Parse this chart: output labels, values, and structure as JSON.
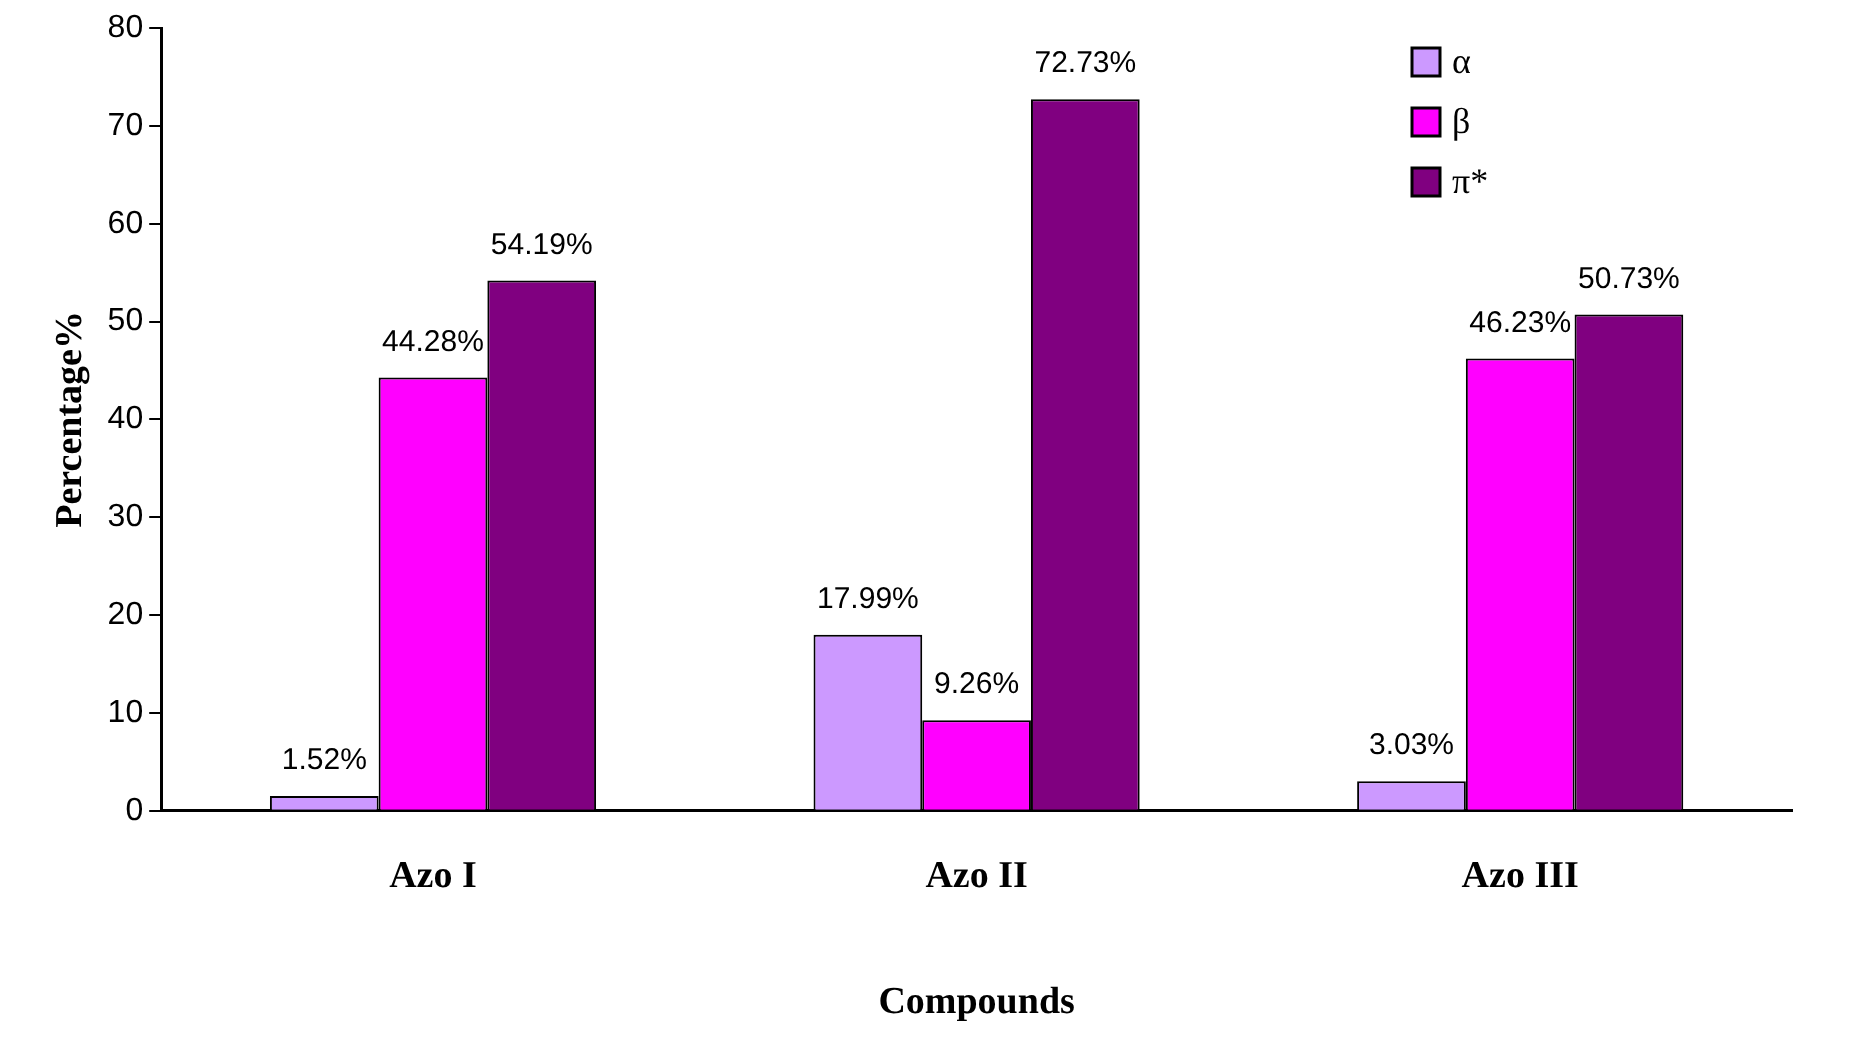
{
  "chart_data": {
    "type": "bar",
    "xlabel": "Compounds",
    "ylabel": "Percentage%",
    "categories": [
      "Azo I",
      "Azo II",
      "Azo III"
    ],
    "series": [
      {
        "name": "α",
        "color": "#cc99ff",
        "values": [
          1.52,
          17.99,
          3.03
        ],
        "value_labels": [
          "1.52%",
          "17.99%",
          "3.03%"
        ]
      },
      {
        "name": "β",
        "color": "#ff00ff",
        "values": [
          44.28,
          9.26,
          46.23
        ],
        "value_labels": [
          "44.28%",
          "9.26%",
          "46.23%"
        ]
      },
      {
        "name": "π*",
        "color": "#800080",
        "values": [
          54.19,
          72.73,
          50.73
        ],
        "value_labels": [
          "54.19%",
          "72.73%",
          "50.73%"
        ]
      }
    ],
    "ylim": [
      0,
      80
    ],
    "yticks": [
      0,
      10,
      20,
      30,
      40,
      50,
      60,
      70,
      80
    ],
    "grid": false,
    "legend": "top right"
  }
}
